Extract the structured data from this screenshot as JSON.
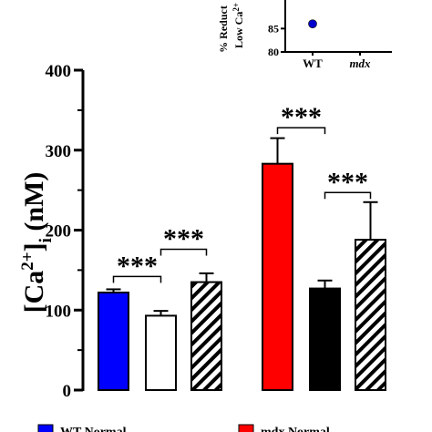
{
  "chart_data": [
    {
      "type": "bar",
      "ylabel_base": "[Ca",
      "ylabel_sup": "2+",
      "ylabel_close": "]",
      "ylabel_sub": "i",
      "ylabel_unit": " (nM)",
      "ylim": [
        0,
        400
      ],
      "yticks": [
        "0",
        "100",
        "200",
        "300",
        "400"
      ],
      "yticks_values": [
        0,
        100,
        200,
        300,
        400
      ],
      "bars": [
        {
          "group": "WT",
          "value": 122,
          "error": 4,
          "fill": "#0000ff",
          "pattern": "solid"
        },
        {
          "group": "WT",
          "value": 93,
          "error": 6,
          "fill": "#ffffff",
          "pattern": "open"
        },
        {
          "group": "WT",
          "value": 135,
          "error": 11,
          "fill": "#ffffff",
          "pattern": "hatched"
        },
        {
          "group": "mdx",
          "value": 283,
          "error": 32,
          "fill": "#ff0000",
          "pattern": "solid"
        },
        {
          "group": "mdx",
          "value": 127,
          "error": 10,
          "fill": "#000000",
          "pattern": "solid"
        },
        {
          "group": "mdx",
          "value": 188,
          "error": 47,
          "fill": "#ffffff",
          "pattern": "hatched"
        }
      ],
      "significance": [
        {
          "label": "***",
          "from_bar": 0,
          "to_bar": 1,
          "y": 142
        },
        {
          "label": "***",
          "from_bar": 1,
          "to_bar": 2,
          "y": 176
        },
        {
          "label": "***",
          "from_bar": 3,
          "to_bar": 4,
          "y": 328
        },
        {
          "label": "***",
          "from_bar": 4,
          "to_bar": 5,
          "y": 247
        }
      ],
      "legend": [
        {
          "label": "WT Normal",
          "color": "#0000ff"
        },
        {
          "label": "mdx Normal",
          "color": "#ff0000"
        }
      ]
    },
    {
      "type": "scatter",
      "ylabel_line1": "% Reduct",
      "ylabel_line2_base": "Low Ca",
      "ylabel_line2_sup": "2+",
      "ylim": [
        80,
        95
      ],
      "yticks": [
        "80",
        "85"
      ],
      "yticks_values": [
        80,
        85
      ],
      "categories": [
        "WT",
        "mdx"
      ],
      "points": [
        {
          "category": "WT",
          "value": 86,
          "color": "#0000cc"
        }
      ]
    }
  ]
}
